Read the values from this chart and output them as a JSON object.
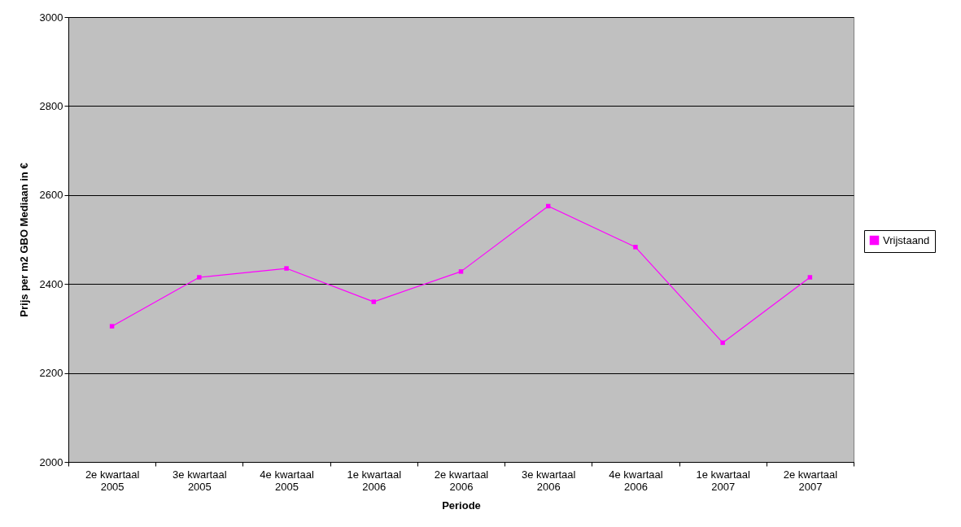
{
  "chart_data": {
    "type": "line",
    "xlabel": "Periode",
    "ylabel": "Prijs per m2 GBO Mediaan in €",
    "categories": [
      "2e  kwartaal 2005",
      "3e  kwartaal 2005",
      "4e  kwartaal 2005",
      "1e  kwartaal 2006",
      "2e  kwartaal 2006",
      "3e  kwartaal 2006",
      "4e  kwartaal 2006",
      "1e  kwartaal 2007",
      "2e  kwartaal 2007"
    ],
    "series": [
      {
        "name": "Vrijstaand",
        "color": "#ff00ff",
        "values": [
          2305,
          2415,
          2435,
          2360,
          2428,
          2575,
          2483,
          2268,
          2415
        ]
      }
    ],
    "ylim": [
      2000,
      3000
    ],
    "yticks": [
      2000,
      2200,
      2400,
      2600,
      2800,
      3000
    ],
    "grid": "y",
    "legend": "right",
    "marker": "square"
  }
}
